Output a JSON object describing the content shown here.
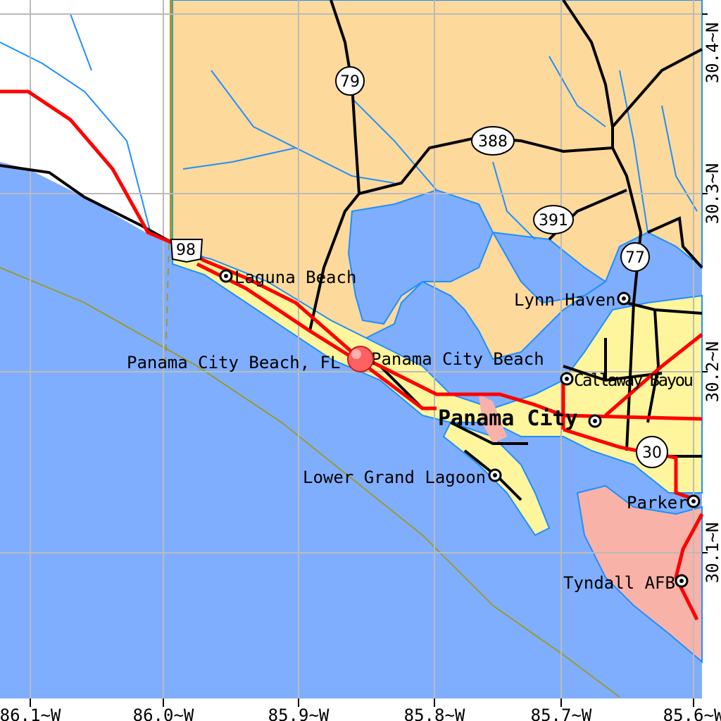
{
  "colors": {
    "land": "#fdd99b",
    "water": "#80aeff",
    "unmapped": "#ffffff",
    "urban": "#fff59d",
    "military": "#f9b2a8",
    "rivers": "#1e8fff",
    "highways": "#ff0000",
    "roads": "#000000",
    "grid": "#bbbbbb",
    "boundary": "#9a9a30"
  },
  "axes": {
    "longitude_labels": [
      "86.1~W",
      "86.0~W",
      "85.9~W",
      "85.8~W",
      "85.7~W",
      "85.6~W"
    ],
    "latitude_labels": [
      "30.4~N",
      "30.3~N",
      "30.2~N",
      "30.1~N"
    ]
  },
  "highway_shields": [
    "79",
    "388",
    "391",
    "77",
    "98",
    "30"
  ],
  "places": [
    {
      "name": "Laguna Beach",
      "icon": "city-dot-icon"
    },
    {
      "name": "Panama City Beach",
      "icon": "city-dot-icon"
    },
    {
      "name": "Lynn Haven",
      "icon": "city-dot-icon"
    },
    {
      "name": "Callaway / Bayou",
      "icon": "city-dot-icon"
    },
    {
      "name": "Panama City",
      "icon": "city-dot-icon"
    },
    {
      "name": "Lower Grand Lagoon",
      "icon": "city-dot-icon"
    },
    {
      "name": "Parker",
      "icon": "city-dot-icon"
    },
    {
      "name": "Tyndall AFB",
      "icon": "city-dot-icon"
    }
  ],
  "marker": {
    "label": "Panama City Beach, FL",
    "icon": "location-marker-icon"
  },
  "text": {
    "callaway": "Callaway Bayou"
  }
}
